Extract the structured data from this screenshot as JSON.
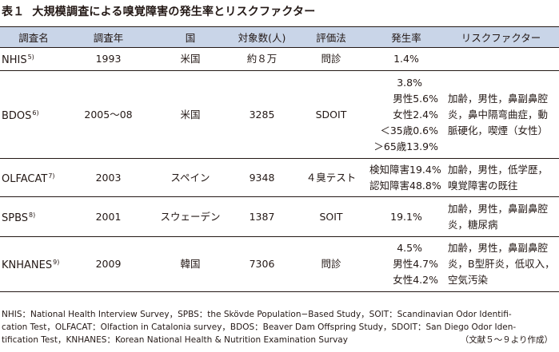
{
  "title": {
    "label": "表１",
    "text": "大規模調査による嗅覚障害の発生率とリスクファクター"
  },
  "table": {
    "headers": [
      "調査名",
      "調査年",
      "国",
      "対象数(人)",
      "評価法",
      "発生率",
      "リスクファクター"
    ],
    "rows": [
      {
        "name": "NHIS",
        "ref": "5)",
        "year": "1993",
        "country": "米国",
        "subjects": "約８万",
        "method": "問診",
        "rate": [
          "1.4%"
        ],
        "risk": []
      },
      {
        "name": "BDOS",
        "ref": "6)",
        "year": "2005～08",
        "country": "米国",
        "subjects": "3285",
        "method": "SDOIT",
        "rate": [
          "3.8%",
          "男性5.6%",
          "女性2.4%",
          "＜35歳0.6%",
          "＞65歳13.9%"
        ],
        "risk": [
          "加齢，男性，鼻副鼻腔",
          "炎，鼻中隔弯曲症，動",
          "脈硬化，喫煙（女性）"
        ]
      },
      {
        "name": "OLFACAT",
        "ref": "7)",
        "year": "2003",
        "country": "スペイン",
        "subjects": "9348",
        "method": "４臭テスト",
        "rate": [
          "検知障害19.4%",
          "認知障害48.8%"
        ],
        "risk": [
          "加齢，男性，低学歴，",
          "嗅覚障害の既往"
        ]
      },
      {
        "name": "SPBS",
        "ref": "8)",
        "year": "2001",
        "country": "スウェーデン",
        "subjects": "1387",
        "method": "SOIT",
        "rate": [
          "19.1%"
        ],
        "risk": [
          "加齢，男性，鼻副鼻腔",
          "炎，糖尿病"
        ]
      },
      {
        "name": "KNHANES",
        "ref": "9)",
        "year": "2009",
        "country": "韓国",
        "subjects": "7306",
        "method": "問診",
        "rate": [
          "4.5%",
          "男性4.7%",
          "女性4.2%"
        ],
        "risk": [
          "加齢，男性，鼻副鼻腔",
          "炎，B型肝炎，低収入，",
          "空気汚染"
        ]
      }
    ]
  },
  "notes": {
    "lines": [
      "NHIS：National Health Interview Survey，SPBS：the Skövde Population−Based Study，SOIT：Scandinavian Odor Identifi-",
      "cation Test，OLFACAT：Olfaction in Catalonia survey，BDOS：Beaver Dam Offspring Study，SDOIT：San Diego Odor Iden-",
      "tification Test，KNHANES：Korean National Health & Nutrition Examination Survay"
    ],
    "source": "（文献５～９より作成）"
  }
}
